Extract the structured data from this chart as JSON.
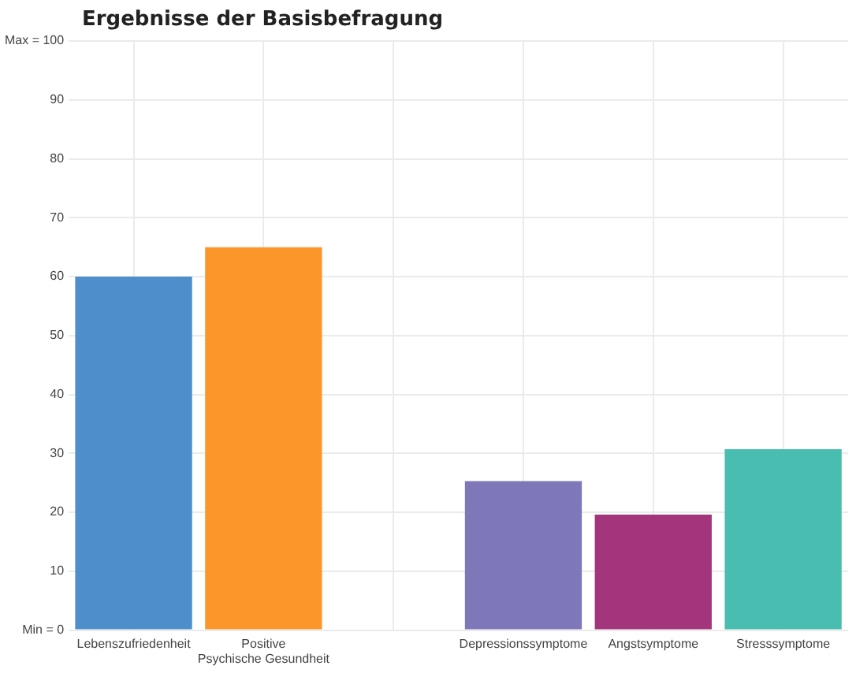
{
  "chart_data": {
    "type": "bar",
    "title": "Ergebnisse der Basisbefragung",
    "categories": [
      "Lebenszufriedenheit",
      "Positive\nPsychische Gesundheit",
      null,
      "Depressionssymptome",
      "Angstsymptome",
      "Stresssymptome"
    ],
    "values": [
      60,
      65,
      null,
      25.3,
      19.6,
      30.7
    ],
    "colors": [
      "#4e8fcb",
      "#fd962a",
      "#cccccc",
      "#7e78b8",
      "#a3357c",
      "#48bdb0"
    ],
    "ylim": [
      0,
      100
    ],
    "yticks": [
      {
        "value": 0,
        "label": "Min = 0"
      },
      10,
      20,
      30,
      40,
      50,
      60,
      70,
      80,
      90,
      {
        "value": 100,
        "label": "Max = 100"
      }
    ],
    "grid": true,
    "legend": false
  }
}
